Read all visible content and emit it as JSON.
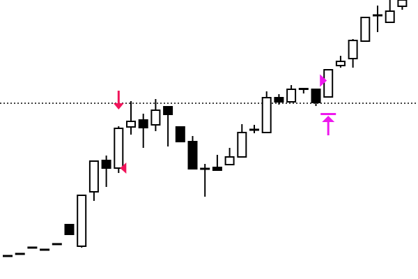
{
  "chart_data": {
    "type": "candlestick",
    "title": "",
    "xlabel": "",
    "ylabel": "",
    "ylim": [
      0,
      400
    ],
    "grid": false,
    "colors": {
      "bullish_body": "#ffffff",
      "bearish_body": "#000000",
      "outline": "#000000",
      "sell_marker": "#f0145a",
      "buy_marker": "#ee18ee",
      "level_line": "#000000"
    },
    "candles": [
      {
        "o": 33,
        "h": 33,
        "l": 33,
        "c": 33
      },
      {
        "o": 36,
        "h": 36,
        "l": 36,
        "c": 36
      },
      {
        "o": 45,
        "h": 45,
        "l": 45,
        "c": 45
      },
      {
        "o": 42,
        "h": 42,
        "l": 42,
        "c": 42
      },
      {
        "o": 50,
        "h": 50,
        "l": 50,
        "c": 50
      },
      {
        "o": 78,
        "h": 78,
        "l": 64,
        "c": 64
      },
      {
        "o": 47,
        "h": 120,
        "l": 45,
        "c": 120
      },
      {
        "o": 125,
        "h": 169,
        "l": 112,
        "c": 169
      },
      {
        "o": 170,
        "h": 177,
        "l": 132,
        "c": 159
      },
      {
        "o": 159,
        "h": 219,
        "l": 152,
        "c": 216
      },
      {
        "o": 218,
        "h": 255,
        "l": 207,
        "c": 226
      },
      {
        "o": 228,
        "h": 237,
        "l": 188,
        "c": 217
      },
      {
        "o": 221,
        "h": 258,
        "l": 212,
        "c": 242
      },
      {
        "o": 247,
        "h": 247,
        "l": 190,
        "c": 236
      },
      {
        "o": 218,
        "h": 218,
        "l": 197,
        "c": 197
      },
      {
        "o": 197,
        "h": 205,
        "l": 157,
        "c": 158
      },
      {
        "o": 158,
        "h": 165,
        "l": 118,
        "c": 158
      },
      {
        "o": 160,
        "h": 178,
        "l": 155,
        "c": 156
      },
      {
        "o": 164,
        "h": 188,
        "l": 164,
        "c": 175
      },
      {
        "o": 175,
        "h": 222,
        "l": 175,
        "c": 210
      },
      {
        "o": 214,
        "h": 221,
        "l": 209,
        "c": 214
      },
      {
        "o": 210,
        "h": 269,
        "l": 210,
        "c": 260
      },
      {
        "o": 260,
        "h": 265,
        "l": 250,
        "c": 254
      },
      {
        "o": 254,
        "h": 278,
        "l": 254,
        "c": 272
      },
      {
        "o": 273,
        "h": 273,
        "l": 266,
        "c": 272
      },
      {
        "o": 272,
        "h": 272,
        "l": 248,
        "c": 253
      },
      {
        "o": 261,
        "h": 300,
        "l": 261,
        "c": 300
      },
      {
        "o": 306,
        "h": 320,
        "l": 303,
        "c": 312
      },
      {
        "o": 316,
        "h": 344,
        "l": 303,
        "c": 342
      },
      {
        "o": 341,
        "h": 375,
        "l": 341,
        "c": 375
      },
      {
        "o": 378,
        "h": 392,
        "l": 354,
        "c": 378
      },
      {
        "o": 368,
        "h": 400,
        "l": 368,
        "c": 384
      },
      {
        "o": 391,
        "h": 400,
        "l": 386,
        "c": 400
      }
    ],
    "level_line": 252,
    "markers": [
      {
        "type": "sell-arrow",
        "candle": 9
      },
      {
        "type": "sell-triangle",
        "candle": 9
      },
      {
        "type": "buy-triangle",
        "candle": 26
      },
      {
        "type": "buy-arrow",
        "candle": 26
      }
    ]
  }
}
